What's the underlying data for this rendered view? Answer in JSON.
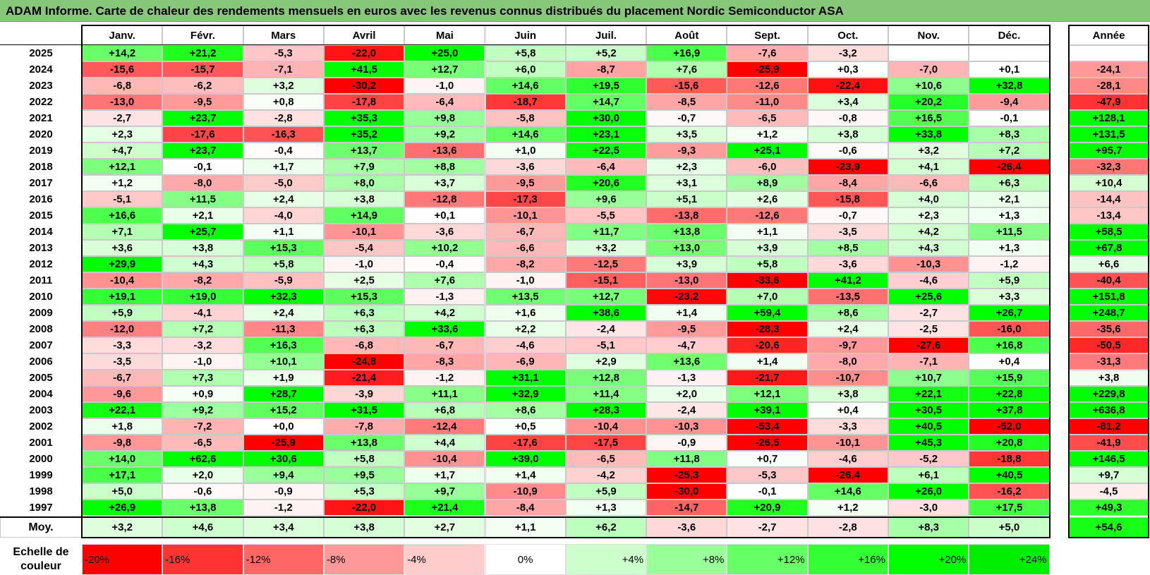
{
  "title": "ADAM Informe. Carte de chaleur des rendements mensuels en euros avec les revenus connus distribués du placement Nordic Semiconductor ASA",
  "chart_data": {
    "type": "heatmap",
    "months": [
      "Janv.",
      "Févr.",
      "Mars",
      "Avril",
      "Mai",
      "Juin",
      "Juil.",
      "Août",
      "Sept.",
      "Oct.",
      "Nov.",
      "Déc."
    ],
    "year_column_label": "Année",
    "rows": [
      {
        "year": "2025",
        "values": [
          "+14,2",
          "+21,2",
          "-5,3",
          "-22,0",
          "+25,0",
          "+5,8",
          "+5,2",
          "+16,9",
          "-7,6",
          "-3,2",
          "",
          ""
        ],
        "annual": ""
      },
      {
        "year": "2024",
        "values": [
          "-15,6",
          "-15,7",
          "-7,1",
          "+41,5",
          "+12,7",
          "+6,0",
          "-8,7",
          "+7,6",
          "-25,9",
          "+0,3",
          "-7,0",
          "+0,1"
        ],
        "annual": "-24,1"
      },
      {
        "year": "2023",
        "values": [
          "-6,8",
          "-6,2",
          "+3,2",
          "-30,2",
          "-1,0",
          "+14,6",
          "+19,5",
          "-15,6",
          "-12,6",
          "-22,4",
          "+10,6",
          "+32,8"
        ],
        "annual": "-28,1"
      },
      {
        "year": "2022",
        "values": [
          "-13,0",
          "-9,5",
          "+0,8",
          "-17,8",
          "-6,4",
          "-18,7",
          "+14,7",
          "-8,5",
          "-11,0",
          "+3,4",
          "+20,2",
          "-9,4"
        ],
        "annual": "-47,9"
      },
      {
        "year": "2021",
        "values": [
          "-2,7",
          "+23,7",
          "-2,8",
          "+35,3",
          "+9,8",
          "-5,8",
          "+30,0",
          "-0,7",
          "-6,5",
          "-0,8",
          "+16,5",
          "-0,1"
        ],
        "annual": "+128,1"
      },
      {
        "year": "2020",
        "values": [
          "+2,3",
          "-17,6",
          "-16,3",
          "+35,2",
          "+9,2",
          "+14,6",
          "+23,1",
          "+3,5",
          "+1,2",
          "+3,8",
          "+33,8",
          "+8,3"
        ],
        "annual": "+131,5"
      },
      {
        "year": "2019",
        "values": [
          "+4,7",
          "+23,7",
          "-0,4",
          "+13,7",
          "-13,6",
          "+1,0",
          "+22,5",
          "-9,3",
          "+25,1",
          "-0,6",
          "+3,2",
          "+7,2"
        ],
        "annual": "+95,7"
      },
      {
        "year": "2018",
        "values": [
          "+12,1",
          "-0,1",
          "+1,7",
          "+7,9",
          "+8,8",
          "-3,6",
          "-6,4",
          "+2,3",
          "-6,0",
          "-23,9",
          "+4,1",
          "-26,4"
        ],
        "annual": "-32,3"
      },
      {
        "year": "2017",
        "values": [
          "+1,2",
          "-8,0",
          "-5,0",
          "+8,0",
          "+3,7",
          "-9,5",
          "+20,6",
          "+3,1",
          "+8,9",
          "-8,4",
          "-6,6",
          "+6,3"
        ],
        "annual": "+10,4"
      },
      {
        "year": "2016",
        "values": [
          "-5,1",
          "+11,5",
          "+2,4",
          "+3,8",
          "-12,8",
          "-17,3",
          "+9,6",
          "+5,1",
          "+2,6",
          "-15,8",
          "+4,0",
          "+2,1"
        ],
        "annual": "-14,4"
      },
      {
        "year": "2015",
        "values": [
          "+16,6",
          "+2,1",
          "-4,0",
          "+14,9",
          "+0,1",
          "-10,1",
          "-5,5",
          "-13,8",
          "-12,6",
          "-0,7",
          "+2,3",
          "+1,3"
        ],
        "annual": "-13,4"
      },
      {
        "year": "2014",
        "values": [
          "+7,1",
          "+25,7",
          "+1,1",
          "-10,1",
          "-3,6",
          "-6,7",
          "+11,7",
          "+13,8",
          "+1,1",
          "-3,5",
          "+4,2",
          "+11,5"
        ],
        "annual": "+58,5"
      },
      {
        "year": "2013",
        "values": [
          "+3,6",
          "+3,8",
          "+15,3",
          "-5,4",
          "+10,2",
          "-6,6",
          "+3,2",
          "+13,0",
          "+3,9",
          "+8,5",
          "+4,3",
          "+1,3"
        ],
        "annual": "+67,8"
      },
      {
        "year": "2012",
        "values": [
          "+29,9",
          "+4,3",
          "+5,8",
          "-1,0",
          "-0,4",
          "-8,2",
          "-12,5",
          "+3,9",
          "+5,8",
          "-3,6",
          "-10,3",
          "-1,2"
        ],
        "annual": "+6,6"
      },
      {
        "year": "2011",
        "values": [
          "-10,4",
          "-8,2",
          "-5,9",
          "+2,5",
          "+7,6",
          "-1,0",
          "-15,1",
          "-13,0",
          "-33,6",
          "+41,2",
          "-4,6",
          "+5,9"
        ],
        "annual": "-40,4"
      },
      {
        "year": "2010",
        "values": [
          "+19,1",
          "+19,0",
          "+32,3",
          "+15,3",
          "-1,3",
          "+13,5",
          "+12,7",
          "-23,2",
          "+7,0",
          "-13,5",
          "+25,6",
          "+3,3"
        ],
        "annual": "+151,8"
      },
      {
        "year": "2009",
        "values": [
          "+5,9",
          "-4,1",
          "+2,4",
          "+6,3",
          "+4,2",
          "+1,6",
          "+38,6",
          "+1,4",
          "+59,4",
          "+8,6",
          "-2,7",
          "+26,7"
        ],
        "annual": "+248,7"
      },
      {
        "year": "2008",
        "values": [
          "-12,0",
          "+7,2",
          "-11,3",
          "+6,3",
          "+33,6",
          "+2,2",
          "-2,4",
          "-9,5",
          "-28,3",
          "+2,4",
          "-2,5",
          "-16,0"
        ],
        "annual": "-35,6"
      },
      {
        "year": "2007",
        "values": [
          "-3,3",
          "-3,2",
          "+16,3",
          "-6,8",
          "-6,7",
          "-4,6",
          "-5,1",
          "-4,7",
          "-20,6",
          "-9,7",
          "-27,6",
          "+16,8"
        ],
        "annual": "-50,5"
      },
      {
        "year": "2006",
        "values": [
          "-3,5",
          "-1,0",
          "+10,1",
          "-24,8",
          "-8,3",
          "-6,9",
          "+2,9",
          "+13,6",
          "+1,4",
          "-8,0",
          "-7,1",
          "+0,4"
        ],
        "annual": "-31,3"
      },
      {
        "year": "2005",
        "values": [
          "-6,7",
          "+7,3",
          "+1,9",
          "-21,4",
          "-1,2",
          "+31,1",
          "+12,8",
          "-1,3",
          "-21,7",
          "-10,7",
          "+10,7",
          "+15,9"
        ],
        "annual": "+3,8"
      },
      {
        "year": "2004",
        "values": [
          "-9,6",
          "+0,9",
          "+28,7",
          "-3,9",
          "+11,1",
          "+32,9",
          "+11,4",
          "+2,0",
          "+12,1",
          "+3,8",
          "+22,1",
          "+22,8"
        ],
        "annual": "+229,8"
      },
      {
        "year": "2003",
        "values": [
          "+22,1",
          "+9,2",
          "+15,2",
          "+31,5",
          "+6,8",
          "+8,6",
          "+28,3",
          "-2,4",
          "+39,1",
          "+0,4",
          "+30,5",
          "+37,8"
        ],
        "annual": "+636,8"
      },
      {
        "year": "2002",
        "values": [
          "+1,8",
          "-7,2",
          "+0,0",
          "-7,8",
          "-12,4",
          "+0,5",
          "-10,4",
          "-10,3",
          "-53,4",
          "-3,3",
          "+40,5",
          "-52,0"
        ],
        "annual": "-81,2"
      },
      {
        "year": "2001",
        "values": [
          "-9,8",
          "-6,5",
          "-25,9",
          "+13,8",
          "+4,4",
          "-17,6",
          "-17,5",
          "-0,9",
          "-26,5",
          "-10,1",
          "+45,3",
          "+20,8"
        ],
        "annual": "-41,9"
      },
      {
        "year": "2000",
        "values": [
          "+14,0",
          "+62,6",
          "+30,6",
          "+5,8",
          "-10,4",
          "+39,0",
          "-6,5",
          "+11,8",
          "+0,7",
          "-4,6",
          "-5,2",
          "-18,8"
        ],
        "annual": "+146,5"
      },
      {
        "year": "1999",
        "values": [
          "+17,1",
          "+2,0",
          "+9,4",
          "+9,5",
          "+1,7",
          "+1,4",
          "-4,2",
          "-25,3",
          "-5,3",
          "-26,4",
          "+6,1",
          "+40,5"
        ],
        "annual": "+9,7"
      },
      {
        "year": "1998",
        "values": [
          "+5,0",
          "-0,6",
          "-0,9",
          "+5,3",
          "+9,7",
          "-10,9",
          "+5,9",
          "-30,0",
          "-0,1",
          "+14,6",
          "+26,0",
          "-16,2"
        ],
        "annual": "-4,5"
      },
      {
        "year": "1997",
        "values": [
          "+26,9",
          "+13,8",
          "-1,2",
          "-22,0",
          "+21,4",
          "-8,4",
          "+1,3",
          "-14,7",
          "+20,9",
          "+1,2",
          "-3,0",
          "+17,5"
        ],
        "annual": "+49,3"
      }
    ],
    "average": {
      "label": "Moy.",
      "values": [
        "+3,2",
        "+4,6",
        "+3,4",
        "+3,8",
        "+2,7",
        "+1,1",
        "+6,2",
        "-3,6",
        "-2,7",
        "-2,8",
        "+8,3",
        "+5,0"
      ],
      "annual": "+54,6"
    },
    "color_scale": {
      "label": "Echelle de couleur",
      "steps": [
        {
          "label": "-20%",
          "color": "#ff0000"
        },
        {
          "label": "-16%",
          "color": "#ff3333"
        },
        {
          "label": "-12%",
          "color": "#ff6666"
        },
        {
          "label": "-8%",
          "color": "#ff9999"
        },
        {
          "label": "-4%",
          "color": "#ffcccc"
        },
        {
          "label": "0%",
          "color": "#ffffff"
        },
        {
          "label": "+4%",
          "color": "#ccffcc"
        },
        {
          "label": "+8%",
          "color": "#99ff99"
        },
        {
          "label": "+12%",
          "color": "#66ff66"
        },
        {
          "label": "+16%",
          "color": "#33ff33"
        },
        {
          "label": "+20%",
          "color": "#00ff00"
        },
        {
          "label": "+24%",
          "color": "#00ee00"
        }
      ]
    },
    "colors": {
      "negative_max": "#ff0000",
      "neutral": "#ffffff",
      "positive_max": "#00ff00"
    }
  }
}
